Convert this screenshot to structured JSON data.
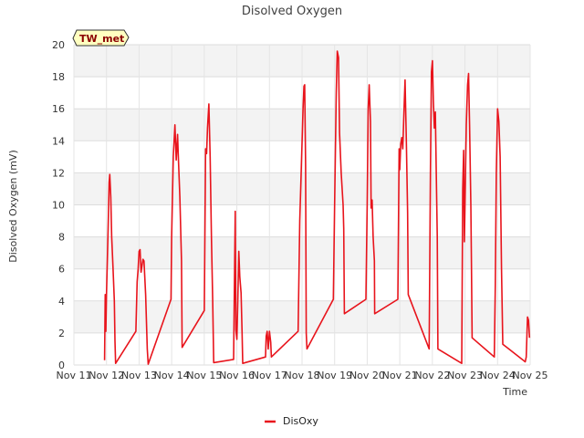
{
  "chart_data": {
    "type": "line",
    "title": "Disolved Oxygen",
    "xlabel": "Time",
    "ylabel": "Disolved Oxygen (mV)",
    "badge": "TW_met",
    "ylim": [
      0,
      20
    ],
    "yticks": [
      0,
      2,
      4,
      6,
      8,
      10,
      12,
      14,
      16,
      18,
      20
    ],
    "xlim": [
      11,
      25
    ],
    "xticks": [
      {
        "v": 11,
        "label": "Nov 11"
      },
      {
        "v": 12,
        "label": "Nov 12"
      },
      {
        "v": 13,
        "label": "Nov 13"
      },
      {
        "v": 14,
        "label": "Nov 14"
      },
      {
        "v": 15,
        "label": "Nov 15"
      },
      {
        "v": 16,
        "label": "Nov 16"
      },
      {
        "v": 17,
        "label": "Nov 17"
      },
      {
        "v": 18,
        "label": "Nov 18"
      },
      {
        "v": 19,
        "label": "Nov 19"
      },
      {
        "v": 20,
        "label": "Nov 20"
      },
      {
        "v": 21,
        "label": "Nov 21"
      },
      {
        "v": 22,
        "label": "Nov 22"
      },
      {
        "v": 23,
        "label": "Nov 23"
      },
      {
        "v": 24,
        "label": "Nov 24"
      },
      {
        "v": 25,
        "label": "Nov 25"
      }
    ],
    "grid": true,
    "legend_position": "bottom-center",
    "series": [
      {
        "name": "DisOxy",
        "color": "#e8141c",
        "points": [
          [
            11.94,
            0.3
          ],
          [
            11.96,
            4.4
          ],
          [
            11.98,
            2.1
          ],
          [
            12.0,
            4.4
          ],
          [
            12.05,
            8.5
          ],
          [
            12.08,
            11.4
          ],
          [
            12.1,
            11.9
          ],
          [
            12.13,
            10.5
          ],
          [
            12.16,
            8.0
          ],
          [
            12.2,
            6.0
          ],
          [
            12.24,
            4.0
          ],
          [
            12.26,
            1.5
          ],
          [
            12.28,
            0.1
          ],
          [
            12.9,
            2.1
          ],
          [
            12.94,
            5.2
          ],
          [
            12.97,
            6.0
          ],
          [
            13.0,
            7.1
          ],
          [
            13.03,
            7.2
          ],
          [
            13.06,
            5.8
          ],
          [
            13.09,
            6.2
          ],
          [
            13.12,
            6.6
          ],
          [
            13.15,
            6.5
          ],
          [
            13.2,
            4.4
          ],
          [
            13.25,
            1.0
          ],
          [
            13.28,
            0.05
          ],
          [
            13.98,
            4.1
          ],
          [
            14.0,
            8.0
          ],
          [
            14.05,
            13.0
          ],
          [
            14.1,
            15.0
          ],
          [
            14.14,
            12.8
          ],
          [
            14.18,
            14.4
          ],
          [
            14.2,
            13.2
          ],
          [
            14.25,
            10.5
          ],
          [
            14.3,
            6.5
          ],
          [
            14.32,
            1.1
          ],
          [
            15.0,
            3.4
          ],
          [
            15.04,
            13.5
          ],
          [
            15.07,
            13.2
          ],
          [
            15.1,
            14.8
          ],
          [
            15.14,
            16.3
          ],
          [
            15.18,
            13.0
          ],
          [
            15.22,
            8.0
          ],
          [
            15.26,
            4.0
          ],
          [
            15.29,
            0.15
          ],
          [
            15.9,
            0.35
          ],
          [
            15.92,
            4.0
          ],
          [
            15.95,
            9.6
          ],
          [
            15.97,
            2.2
          ],
          [
            16.0,
            1.6
          ],
          [
            16.03,
            4.0
          ],
          [
            16.06,
            7.1
          ],
          [
            16.09,
            5.5
          ],
          [
            16.13,
            4.5
          ],
          [
            16.16,
            2.0
          ],
          [
            16.18,
            0.1
          ],
          [
            16.88,
            0.5
          ],
          [
            16.9,
            1.8
          ],
          [
            16.93,
            2.1
          ],
          [
            16.96,
            1.0
          ],
          [
            17.0,
            2.1
          ],
          [
            17.04,
            1.4
          ],
          [
            17.06,
            0.5
          ],
          [
            17.88,
            2.1
          ],
          [
            17.93,
            9.0
          ],
          [
            17.98,
            12.5
          ],
          [
            18.03,
            16.0
          ],
          [
            18.06,
            17.4
          ],
          [
            18.08,
            17.5
          ],
          [
            18.11,
            12.5
          ],
          [
            18.13,
            2.0
          ],
          [
            18.15,
            1.0
          ],
          [
            18.96,
            4.1
          ],
          [
            19.0,
            10.0
          ],
          [
            19.05,
            17.0
          ],
          [
            19.08,
            19.6
          ],
          [
            19.12,
            19.2
          ],
          [
            19.15,
            14.5
          ],
          [
            19.2,
            12.0
          ],
          [
            19.26,
            10.0
          ],
          [
            19.28,
            8.5
          ],
          [
            19.3,
            3.2
          ],
          [
            19.96,
            4.1
          ],
          [
            20.0,
            10.0
          ],
          [
            20.03,
            16.0
          ],
          [
            20.06,
            17.5
          ],
          [
            20.1,
            15.2
          ],
          [
            20.12,
            9.8
          ],
          [
            20.15,
            10.3
          ],
          [
            20.18,
            8.0
          ],
          [
            20.22,
            6.5
          ],
          [
            20.23,
            3.2
          ],
          [
            20.94,
            4.1
          ],
          [
            20.98,
            13.5
          ],
          [
            21.0,
            12.2
          ],
          [
            21.03,
            13.8
          ],
          [
            21.06,
            14.2
          ],
          [
            21.09,
            13.5
          ],
          [
            21.14,
            16.5
          ],
          [
            21.16,
            17.8
          ],
          [
            21.2,
            14.0
          ],
          [
            21.24,
            9.5
          ],
          [
            21.26,
            4.4
          ],
          [
            21.9,
            1.0
          ],
          [
            21.94,
            12.0
          ],
          [
            21.97,
            18.3
          ],
          [
            22.0,
            19.0
          ],
          [
            22.03,
            16.5
          ],
          [
            22.06,
            14.8
          ],
          [
            22.09,
            15.8
          ],
          [
            22.12,
            12.0
          ],
          [
            22.15,
            8.0
          ],
          [
            22.17,
            1.0
          ],
          [
            22.9,
            0.1
          ],
          [
            22.93,
            11.0
          ],
          [
            22.96,
            13.4
          ],
          [
            22.98,
            7.7
          ],
          [
            23.0,
            10.0
          ],
          [
            23.04,
            15.0
          ],
          [
            23.08,
            17.5
          ],
          [
            23.11,
            18.2
          ],
          [
            23.14,
            15.0
          ],
          [
            23.18,
            10.0
          ],
          [
            23.2,
            6.0
          ],
          [
            23.22,
            1.7
          ],
          [
            23.9,
            0.5
          ],
          [
            23.93,
            5.0
          ],
          [
            23.96,
            12.0
          ],
          [
            24.0,
            16.0
          ],
          [
            24.04,
            15.2
          ],
          [
            24.08,
            13.0
          ],
          [
            24.12,
            6.0
          ],
          [
            24.16,
            1.3
          ],
          [
            24.85,
            0.2
          ],
          [
            24.88,
            0.5
          ],
          [
            24.92,
            3.0
          ],
          [
            24.95,
            2.8
          ],
          [
            24.98,
            1.7
          ]
        ]
      }
    ]
  }
}
